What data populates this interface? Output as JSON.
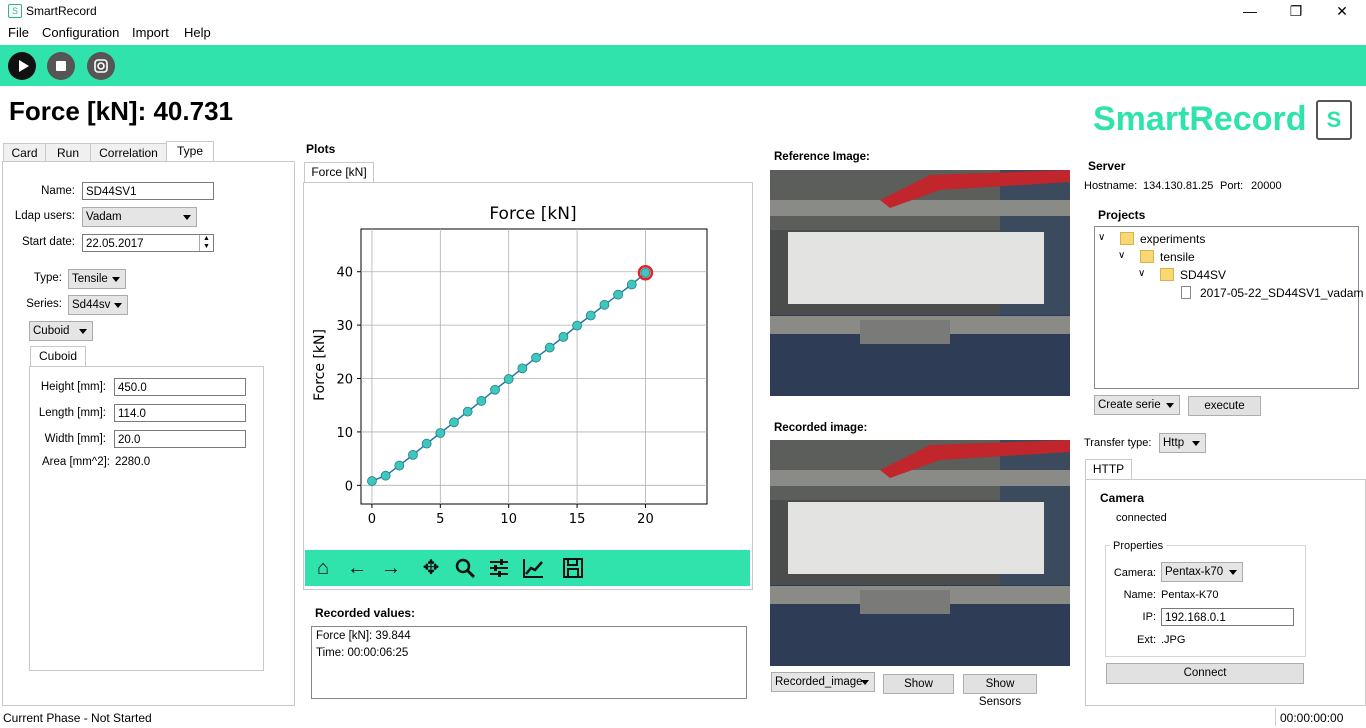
{
  "window": {
    "title": "SmartRecord",
    "controls": [
      "—",
      "❐",
      "✕"
    ]
  },
  "menu": [
    "File",
    "Configuration",
    "Import",
    "Help"
  ],
  "toolbar": {
    "buttons": [
      "play-icon",
      "stop-icon",
      "camera-icon"
    ]
  },
  "header": {
    "force_readout": "Force [kN]: 40.731",
    "logo": "SmartRecord",
    "logo_mark": "S"
  },
  "left_tabs": [
    "Card",
    "Run",
    "Correlation",
    "Type"
  ],
  "type_form": {
    "name_label": "Name:",
    "name_value": "SD44SV1",
    "ldap_label": "Ldap users:",
    "ldap_value": "Vadam",
    "start_label": "Start date:",
    "start_value": "22.05.2017",
    "type_label": "Type:",
    "type_value": "Tensile",
    "series_label": "Series:",
    "series_value": "Sd44sv",
    "shape_value": "Cuboid",
    "shape_tab": "Cuboid",
    "height_label": "Height [mm]:",
    "height_value": "450.0",
    "length_label": "Length [mm]:",
    "length_value": "114.0",
    "width_label": "Width [mm]:",
    "width_value": "20.0",
    "area_label": "Area [mm^2]:",
    "area_value": "2280.0"
  },
  "plots": {
    "section_label": "Plots",
    "tab": "Force [kN]",
    "recorded_label": "Recorded values:",
    "recorded_lines": [
      "Force [kN]: 39.844",
      "Time: 00:00:06:25"
    ]
  },
  "chart_data": {
    "type": "line",
    "title": "Force [kN]",
    "xlabel": "",
    "ylabel": "Force [kN]",
    "x": [
      0,
      1,
      2,
      3,
      4,
      5,
      6,
      7,
      8,
      9,
      10,
      11,
      12,
      13,
      14,
      15,
      16,
      17,
      18,
      19,
      20
    ],
    "y": [
      0.8,
      1.8,
      3.7,
      5.7,
      7.8,
      9.8,
      11.8,
      13.8,
      15.8,
      17.9,
      19.9,
      21.9,
      23.9,
      25.8,
      27.8,
      29.9,
      31.8,
      33.8,
      35.7,
      37.6,
      39.8
    ],
    "highlight_last": true,
    "xlim": [
      -0.8,
      24.5
    ],
    "ylim": [
      -3.5,
      48
    ],
    "xticks": [
      0,
      5,
      10,
      15,
      20
    ],
    "yticks": [
      0,
      10,
      20,
      30,
      40
    ],
    "grid": true,
    "colors": {
      "marker": "#3cc7c0",
      "line": "#1f77b4",
      "highlight": "#e0242e"
    }
  },
  "images": {
    "reference_label": "Reference Image:",
    "recorded_label": "Recorded image:",
    "select_value": "Recorded_image",
    "show_button": "Show",
    "sensors_button": "Show Sensors"
  },
  "server": {
    "title": "Server",
    "hostname_label": "Hostname:",
    "hostname_value": "134.130.81.25",
    "port_label": "Port:",
    "port_value": "20000",
    "projects_label": "Projects",
    "tree": [
      "experiments",
      "tensile",
      "SD44SV",
      "2017-05-22_SD44SV1_vadam"
    ],
    "create_serie": "Create serie",
    "execute": "execute",
    "transfer_label": "Transfer type:",
    "transfer_value": "Http",
    "http_tab": "HTTP",
    "camera_title": "Camera",
    "camera_status": "connected",
    "properties_label": "Properties",
    "camera_label": "Camera:",
    "camera_value": "Pentax-k70",
    "name_label": "Name:",
    "name_value": "Pentax-K70",
    "ip_label": "IP:",
    "ip_value": "192.168.0.1",
    "ext_label": "Ext:",
    "ext_value": ".JPG",
    "connect_button": "Connect"
  },
  "status": {
    "phase": "Current Phase - Not Started",
    "timer": "00:00:00:00"
  },
  "colors": {
    "accent": "#30e3ad"
  }
}
